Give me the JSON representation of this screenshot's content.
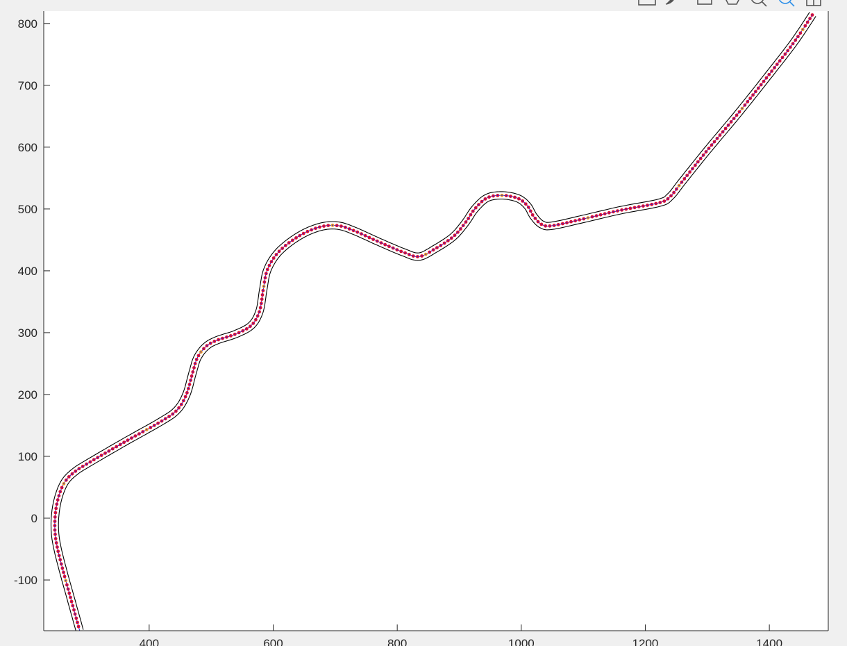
{
  "toolbar": {
    "icons": [
      "export-icon",
      "brush-icon",
      "rotate-icon",
      "pan-icon",
      "zoom-out-icon",
      "zoom-in-icon",
      "data-tips-icon"
    ],
    "active_icon": "zoom-in-icon"
  },
  "colors": {
    "figure_bg": "#f0f0f0",
    "axes_bg": "#ffffff",
    "boundary": "#000000",
    "centerline": "#1f1fd8",
    "points": "#e8102a",
    "points_alt": "#f39a1f"
  },
  "chart_data": {
    "type": "line",
    "title": "",
    "xlabel": "",
    "ylabel": "",
    "xlim": [
      230,
      1495
    ],
    "ylim": [
      -182,
      820
    ],
    "grid": false,
    "xticks": [
      400,
      600,
      800,
      1000,
      1200,
      1400
    ],
    "yticks": [
      -100,
      0,
      100,
      200,
      300,
      400,
      500,
      600,
      700,
      800
    ],
    "xtick_labels": [
      "400",
      "600",
      "800",
      "1000",
      "1200",
      "1400"
    ],
    "ytick_labels": [
      "-100",
      "0",
      "100",
      "200",
      "300",
      "400",
      "500",
      "600",
      "700",
      "800"
    ],
    "track_half_width": 6,
    "centerline": [
      [
        288,
        -182
      ],
      [
        275,
        -135
      ],
      [
        262,
        -88
      ],
      [
        252,
        -48
      ],
      [
        248,
        -20
      ],
      [
        249,
        10
      ],
      [
        255,
        38
      ],
      [
        265,
        60
      ],
      [
        280,
        75
      ],
      [
        300,
        88
      ],
      [
        360,
        123
      ],
      [
        420,
        157
      ],
      [
        445,
        175
      ],
      [
        460,
        200
      ],
      [
        470,
        235
      ],
      [
        478,
        260
      ],
      [
        492,
        278
      ],
      [
        510,
        288
      ],
      [
        540,
        298
      ],
      [
        565,
        312
      ],
      [
        578,
        335
      ],
      [
        584,
        370
      ],
      [
        590,
        400
      ],
      [
        604,
        425
      ],
      [
        625,
        445
      ],
      [
        652,
        462
      ],
      [
        680,
        472
      ],
      [
        705,
        473
      ],
      [
        730,
        465
      ],
      [
        770,
        447
      ],
      [
        810,
        430
      ],
      [
        835,
        423
      ],
      [
        860,
        435
      ],
      [
        890,
        455
      ],
      [
        910,
        478
      ],
      [
        925,
        500
      ],
      [
        945,
        518
      ],
      [
        970,
        522
      ],
      [
        995,
        517
      ],
      [
        1010,
        505
      ],
      [
        1020,
        488
      ],
      [
        1033,
        475
      ],
      [
        1050,
        473
      ],
      [
        1100,
        484
      ],
      [
        1160,
        498
      ],
      [
        1222,
        510
      ],
      [
        1240,
        520
      ],
      [
        1260,
        545
      ],
      [
        1300,
        595
      ],
      [
        1350,
        655
      ],
      [
        1400,
        718
      ],
      [
        1440,
        770
      ],
      [
        1470,
        815
      ]
    ],
    "point_spacing": 7
  }
}
